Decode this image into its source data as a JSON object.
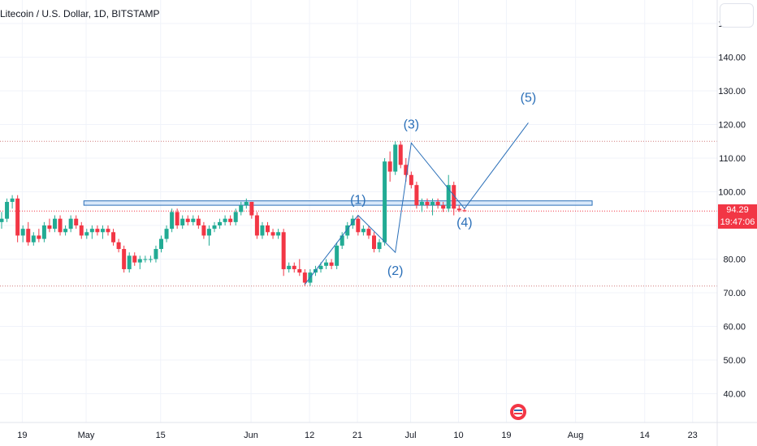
{
  "header": {
    "symbol_title": "Litecoin / U.S. Dollar, 1D, BITSTAMP"
  },
  "price_badge": {
    "price": "94.29",
    "countdown": "19:47:06"
  },
  "colors": {
    "up": "#22ab94",
    "down": "#f23645",
    "wave": "#2a6fb8",
    "zone_fill": "#bcd7f5",
    "zone_stroke": "#2a6fb8",
    "grid": "#f0f3fa",
    "dotted": "#d07a7a"
  },
  "chart_data": {
    "type": "candlestick",
    "symbol": "Litecoin / U.S. Dollar",
    "interval": "1D",
    "exchange": "BITSTAMP",
    "y_axis": {
      "range": [
        35,
        152
      ],
      "ticks": [
        "150.00",
        "140.00",
        "130.00",
        "120.00",
        "110.00",
        "100.00",
        "90.00",
        "80.00",
        "70.00",
        "60.00",
        "50.00",
        "40.00"
      ],
      "tick_values": [
        150,
        140,
        130,
        120,
        110,
        100,
        90,
        80,
        70,
        60,
        50,
        40
      ]
    },
    "x_axis": {
      "ticks": [
        "19",
        "May",
        "15",
        "Jun",
        "12",
        "21",
        "Jul",
        "10",
        "19",
        "Aug",
        "14",
        "23"
      ],
      "tick_days": [
        -12,
        0,
        14,
        31,
        42,
        51,
        61,
        70,
        79,
        92,
        105,
        114
      ],
      "day_zero": "May 1"
    },
    "candles": [
      {
        "o": 91,
        "h": 94,
        "l": 89,
        "c": 92
      },
      {
        "o": 92,
        "h": 98,
        "l": 91,
        "c": 97
      },
      {
        "o": 97,
        "h": 99,
        "l": 95,
        "c": 98
      },
      {
        "o": 98,
        "h": 99,
        "l": 85,
        "c": 87
      },
      {
        "o": 87,
        "h": 90,
        "l": 85,
        "c": 89
      },
      {
        "o": 89,
        "h": 91,
        "l": 84,
        "c": 85
      },
      {
        "o": 85,
        "h": 88,
        "l": 84,
        "c": 87
      },
      {
        "o": 87,
        "h": 89,
        "l": 85,
        "c": 86
      },
      {
        "o": 86,
        "h": 91,
        "l": 85,
        "c": 90
      },
      {
        "o": 90,
        "h": 92,
        "l": 88,
        "c": 89
      },
      {
        "o": 89,
        "h": 93,
        "l": 88,
        "c": 92
      },
      {
        "o": 92,
        "h": 93,
        "l": 87,
        "c": 88
      },
      {
        "o": 88,
        "h": 90,
        "l": 87,
        "c": 89
      },
      {
        "o": 89,
        "h": 93,
        "l": 88,
        "c": 92
      },
      {
        "o": 92,
        "h": 93,
        "l": 89,
        "c": 90
      },
      {
        "o": 90,
        "h": 91,
        "l": 86,
        "c": 87
      },
      {
        "o": 87,
        "h": 89,
        "l": 86,
        "c": 88
      },
      {
        "o": 88,
        "h": 90,
        "l": 86,
        "c": 89
      },
      {
        "o": 89,
        "h": 90,
        "l": 87,
        "c": 88
      },
      {
        "o": 88,
        "h": 90,
        "l": 86,
        "c": 89
      },
      {
        "o": 89,
        "h": 90,
        "l": 87,
        "c": 88
      },
      {
        "o": 88,
        "h": 89,
        "l": 84,
        "c": 85
      },
      {
        "o": 85,
        "h": 86,
        "l": 82,
        "c": 83
      },
      {
        "o": 83,
        "h": 84,
        "l": 76,
        "c": 77
      },
      {
        "o": 77,
        "h": 82,
        "l": 76,
        "c": 81
      },
      {
        "o": 81,
        "h": 82,
        "l": 78,
        "c": 79
      },
      {
        "o": 79,
        "h": 81,
        "l": 77,
        "c": 80
      },
      {
        "o": 80,
        "h": 81,
        "l": 79,
        "c": 80
      },
      {
        "o": 80,
        "h": 81,
        "l": 79,
        "c": 80
      },
      {
        "o": 80,
        "h": 84,
        "l": 79,
        "c": 83
      },
      {
        "o": 83,
        "h": 87,
        "l": 82,
        "c": 86
      },
      {
        "o": 86,
        "h": 90,
        "l": 85,
        "c": 89
      },
      {
        "o": 89,
        "h": 95,
        "l": 88,
        "c": 94
      },
      {
        "o": 94,
        "h": 95,
        "l": 89,
        "c": 90
      },
      {
        "o": 90,
        "h": 93,
        "l": 89,
        "c": 92
      },
      {
        "o": 92,
        "h": 93,
        "l": 90,
        "c": 91
      },
      {
        "o": 91,
        "h": 93,
        "l": 90,
        "c": 92
      },
      {
        "o": 92,
        "h": 93,
        "l": 89,
        "c": 90
      },
      {
        "o": 90,
        "h": 91,
        "l": 86,
        "c": 87
      },
      {
        "o": 87,
        "h": 90,
        "l": 84,
        "c": 89
      },
      {
        "o": 89,
        "h": 91,
        "l": 88,
        "c": 90
      },
      {
        "o": 90,
        "h": 92,
        "l": 89,
        "c": 91
      },
      {
        "o": 91,
        "h": 93,
        "l": 90,
        "c": 92
      },
      {
        "o": 92,
        "h": 93,
        "l": 90,
        "c": 91
      },
      {
        "o": 91,
        "h": 95,
        "l": 90,
        "c": 94
      },
      {
        "o": 94,
        "h": 97,
        "l": 93,
        "c": 96
      },
      {
        "o": 96,
        "h": 98,
        "l": 95,
        "c": 97
      },
      {
        "o": 97,
        "h": 97,
        "l": 92,
        "c": 93
      },
      {
        "o": 93,
        "h": 94,
        "l": 86,
        "c": 87
      },
      {
        "o": 87,
        "h": 91,
        "l": 86,
        "c": 90
      },
      {
        "o": 90,
        "h": 91,
        "l": 87,
        "c": 88
      },
      {
        "o": 88,
        "h": 89,
        "l": 86,
        "c": 87
      },
      {
        "o": 87,
        "h": 89,
        "l": 86,
        "c": 88
      },
      {
        "o": 88,
        "h": 89,
        "l": 75,
        "c": 77
      },
      {
        "o": 77,
        "h": 79,
        "l": 76,
        "c": 78
      },
      {
        "o": 78,
        "h": 79,
        "l": 76,
        "c": 77
      },
      {
        "o": 77,
        "h": 80,
        "l": 75,
        "c": 76
      },
      {
        "o": 76,
        "h": 77,
        "l": 72,
        "c": 73
      },
      {
        "o": 73,
        "h": 77,
        "l": 72,
        "c": 76
      },
      {
        "o": 76,
        "h": 78,
        "l": 75,
        "c": 77
      },
      {
        "o": 77,
        "h": 79,
        "l": 76,
        "c": 78
      },
      {
        "o": 78,
        "h": 80,
        "l": 77,
        "c": 79
      },
      {
        "o": 79,
        "h": 80,
        "l": 77,
        "c": 78
      },
      {
        "o": 78,
        "h": 85,
        "l": 77,
        "c": 84
      },
      {
        "o": 84,
        "h": 88,
        "l": 83,
        "c": 87
      },
      {
        "o": 87,
        "h": 91,
        "l": 86,
        "c": 90
      },
      {
        "o": 90,
        "h": 93,
        "l": 89,
        "c": 92
      },
      {
        "o": 92,
        "h": 93,
        "l": 87,
        "c": 88
      },
      {
        "o": 88,
        "h": 90,
        "l": 87,
        "c": 89
      },
      {
        "o": 89,
        "h": 90,
        "l": 86,
        "c": 87
      },
      {
        "o": 87,
        "h": 88,
        "l": 82,
        "c": 83
      },
      {
        "o": 83,
        "h": 86,
        "l": 82,
        "c": 85
      },
      {
        "o": 85,
        "h": 110,
        "l": 84,
        "c": 109
      },
      {
        "o": 109,
        "h": 112,
        "l": 103,
        "c": 106
      },
      {
        "o": 106,
        "h": 115,
        "l": 105,
        "c": 114
      },
      {
        "o": 114,
        "h": 115,
        "l": 107,
        "c": 108
      },
      {
        "o": 108,
        "h": 110,
        "l": 103,
        "c": 105
      },
      {
        "o": 105,
        "h": 106,
        "l": 101,
        "c": 102
      },
      {
        "o": 102,
        "h": 103,
        "l": 95,
        "c": 96
      },
      {
        "o": 96,
        "h": 98,
        "l": 94,
        "c": 97
      },
      {
        "o": 97,
        "h": 98,
        "l": 95,
        "c": 96
      },
      {
        "o": 96,
        "h": 98,
        "l": 93,
        "c": 97
      },
      {
        "o": 97,
        "h": 98,
        "l": 95,
        "c": 96
      },
      {
        "o": 96,
        "h": 97,
        "l": 94,
        "c": 95
      },
      {
        "o": 95,
        "h": 105,
        "l": 94,
        "c": 102
      },
      {
        "o": 102,
        "h": 103,
        "l": 93,
        "c": 95
      },
      {
        "o": 95,
        "h": 96,
        "l": 94,
        "c": 94.5
      },
      {
        "o": 94.5,
        "h": 95,
        "l": 94,
        "c": 94.29
      }
    ],
    "support_zone": {
      "low": 96.0,
      "high": 97.3,
      "start_index": 15,
      "end_index": 164
    },
    "dotted_levels": [
      115,
      72
    ],
    "current_price": 94.29,
    "elliott_wave": {
      "labels": [
        "(1)",
        "(2)",
        "(3)",
        "(4)",
        "(5)"
      ],
      "points": [
        [
          57,
          72.5
        ],
        [
          67,
          93
        ],
        [
          74,
          82
        ],
        [
          77,
          114.5
        ],
        [
          87,
          95
        ],
        [
          99,
          120.5
        ]
      ]
    }
  }
}
